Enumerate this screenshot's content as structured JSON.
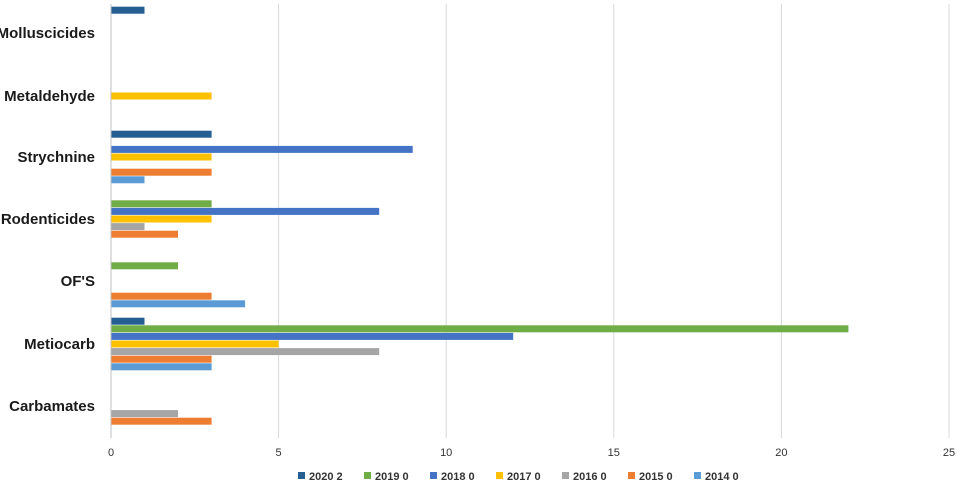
{
  "chart_data": {
    "type": "bar",
    "orientation": "horizontal",
    "categories": [
      "Molluscicides",
      "Metaldehyde",
      "Strychnine",
      "Rodenticides",
      "OF'S",
      "Metiocarb",
      "Carbamates"
    ],
    "series": [
      {
        "name": "2020 2",
        "color": "#255e91",
        "values": [
          1,
          0,
          3,
          0,
          0,
          1,
          0
        ]
      },
      {
        "name": "2019 0",
        "color": "#70ad47",
        "values": [
          0,
          0,
          0,
          3,
          2,
          22,
          0
        ]
      },
      {
        "name": "2018 0",
        "color": "#4472c4",
        "values": [
          0,
          0,
          9,
          8,
          0,
          12,
          0
        ]
      },
      {
        "name": "2017 0",
        "color": "#ffc000",
        "values": [
          0,
          3,
          3,
          3,
          0,
          5,
          0
        ]
      },
      {
        "name": "2016 0",
        "color": "#a5a5a5",
        "values": [
          0,
          0,
          0,
          1,
          0,
          8,
          2
        ]
      },
      {
        "name": "2015 0",
        "color": "#ed7d31",
        "values": [
          0,
          0,
          3,
          2,
          3,
          3,
          3
        ]
      },
      {
        "name": "2014 0",
        "color": "#5b9bd5",
        "values": [
          0,
          0,
          1,
          0,
          4,
          3,
          0
        ]
      }
    ],
    "xlim": [
      0,
      25
    ],
    "x_ticks": [
      "0",
      "5",
      "10",
      "15",
      "20",
      "25"
    ],
    "x_tick_values": [
      0,
      5,
      10,
      15,
      20,
      25
    ],
    "grid": true,
    "legend": "bottom"
  }
}
